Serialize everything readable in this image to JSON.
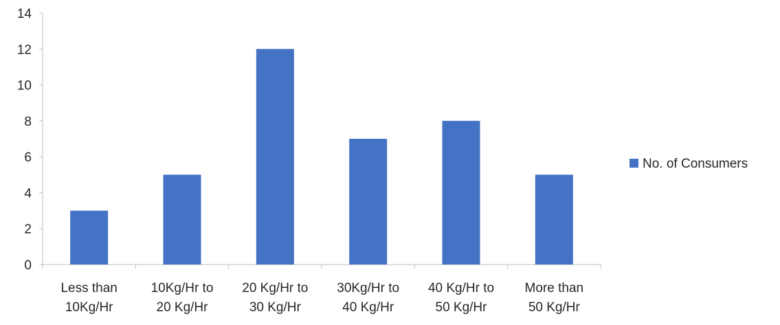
{
  "chart_data": {
    "type": "bar",
    "categories": [
      [
        "Less than",
        "10Kg/Hr"
      ],
      [
        "10Kg/Hr to",
        "20 Kg/Hr"
      ],
      [
        "20 Kg/Hr to",
        "30 Kg/Hr"
      ],
      [
        "30Kg/Hr to",
        "40 Kg/Hr"
      ],
      [
        "40 Kg/Hr to",
        "50 Kg/Hr"
      ],
      [
        "More than",
        "50 Kg/Hr"
      ]
    ],
    "series": [
      {
        "name": "No. of Consumers",
        "values": [
          3,
          5,
          12,
          7,
          8,
          5
        ],
        "color": "#4472C4"
      }
    ],
    "ylim": [
      0,
      14
    ],
    "yticks": [
      0,
      2,
      4,
      6,
      8,
      10,
      12,
      14
    ],
    "grid": false,
    "legend_position": "right"
  }
}
